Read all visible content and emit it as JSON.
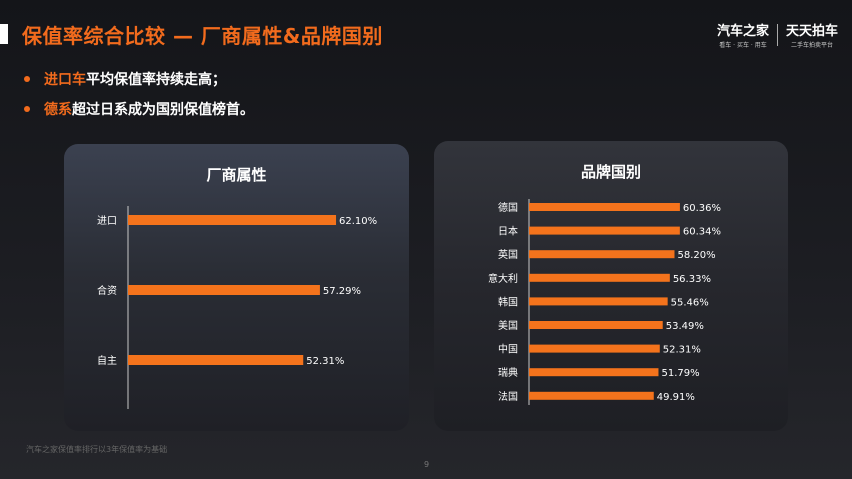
{
  "header": {
    "title": "保值率综合比较 — 厂商属性&品牌国别",
    "logo_main": "汽车之家",
    "logo_main_sub": "看车 · 买车 · 用车",
    "logo_second": "天天拍车",
    "logo_second_sub": "二手车拍卖平台"
  },
  "bullets": [
    {
      "highlight": "进口车",
      "text": "平均保值率持续走高；"
    },
    {
      "highlight": "德系",
      "text": "超过日系成为国别保值榜首。"
    }
  ],
  "colors": {
    "accent": "#f26b1d",
    "bar": "#f4731c"
  },
  "chart_data": [
    {
      "type": "bar",
      "orientation": "horizontal",
      "title": "厂商属性",
      "categories": [
        "进口",
        "合资",
        "自主"
      ],
      "values": [
        62.1,
        57.29,
        52.31
      ],
      "labels": [
        "62.10%",
        "57.29%",
        "52.31%"
      ],
      "grid": false
    },
    {
      "type": "bar",
      "orientation": "horizontal",
      "title": "品牌国别",
      "categories": [
        "德国",
        "日本",
        "英国",
        "意大利",
        "韩国",
        "美国",
        "中国",
        "瑞典",
        "法国"
      ],
      "values": [
        60.36,
        60.34,
        58.2,
        56.33,
        55.46,
        53.49,
        52.31,
        51.79,
        49.91
      ],
      "labels": [
        "60.36%",
        "60.34%",
        "58.20%",
        "56.33%",
        "55.46%",
        "53.49%",
        "52.31%",
        "51.79%",
        "49.91%"
      ],
      "grid": false
    }
  ],
  "footnote": "汽车之家保值率排行以3年保值率为基础",
  "page_number": "9"
}
